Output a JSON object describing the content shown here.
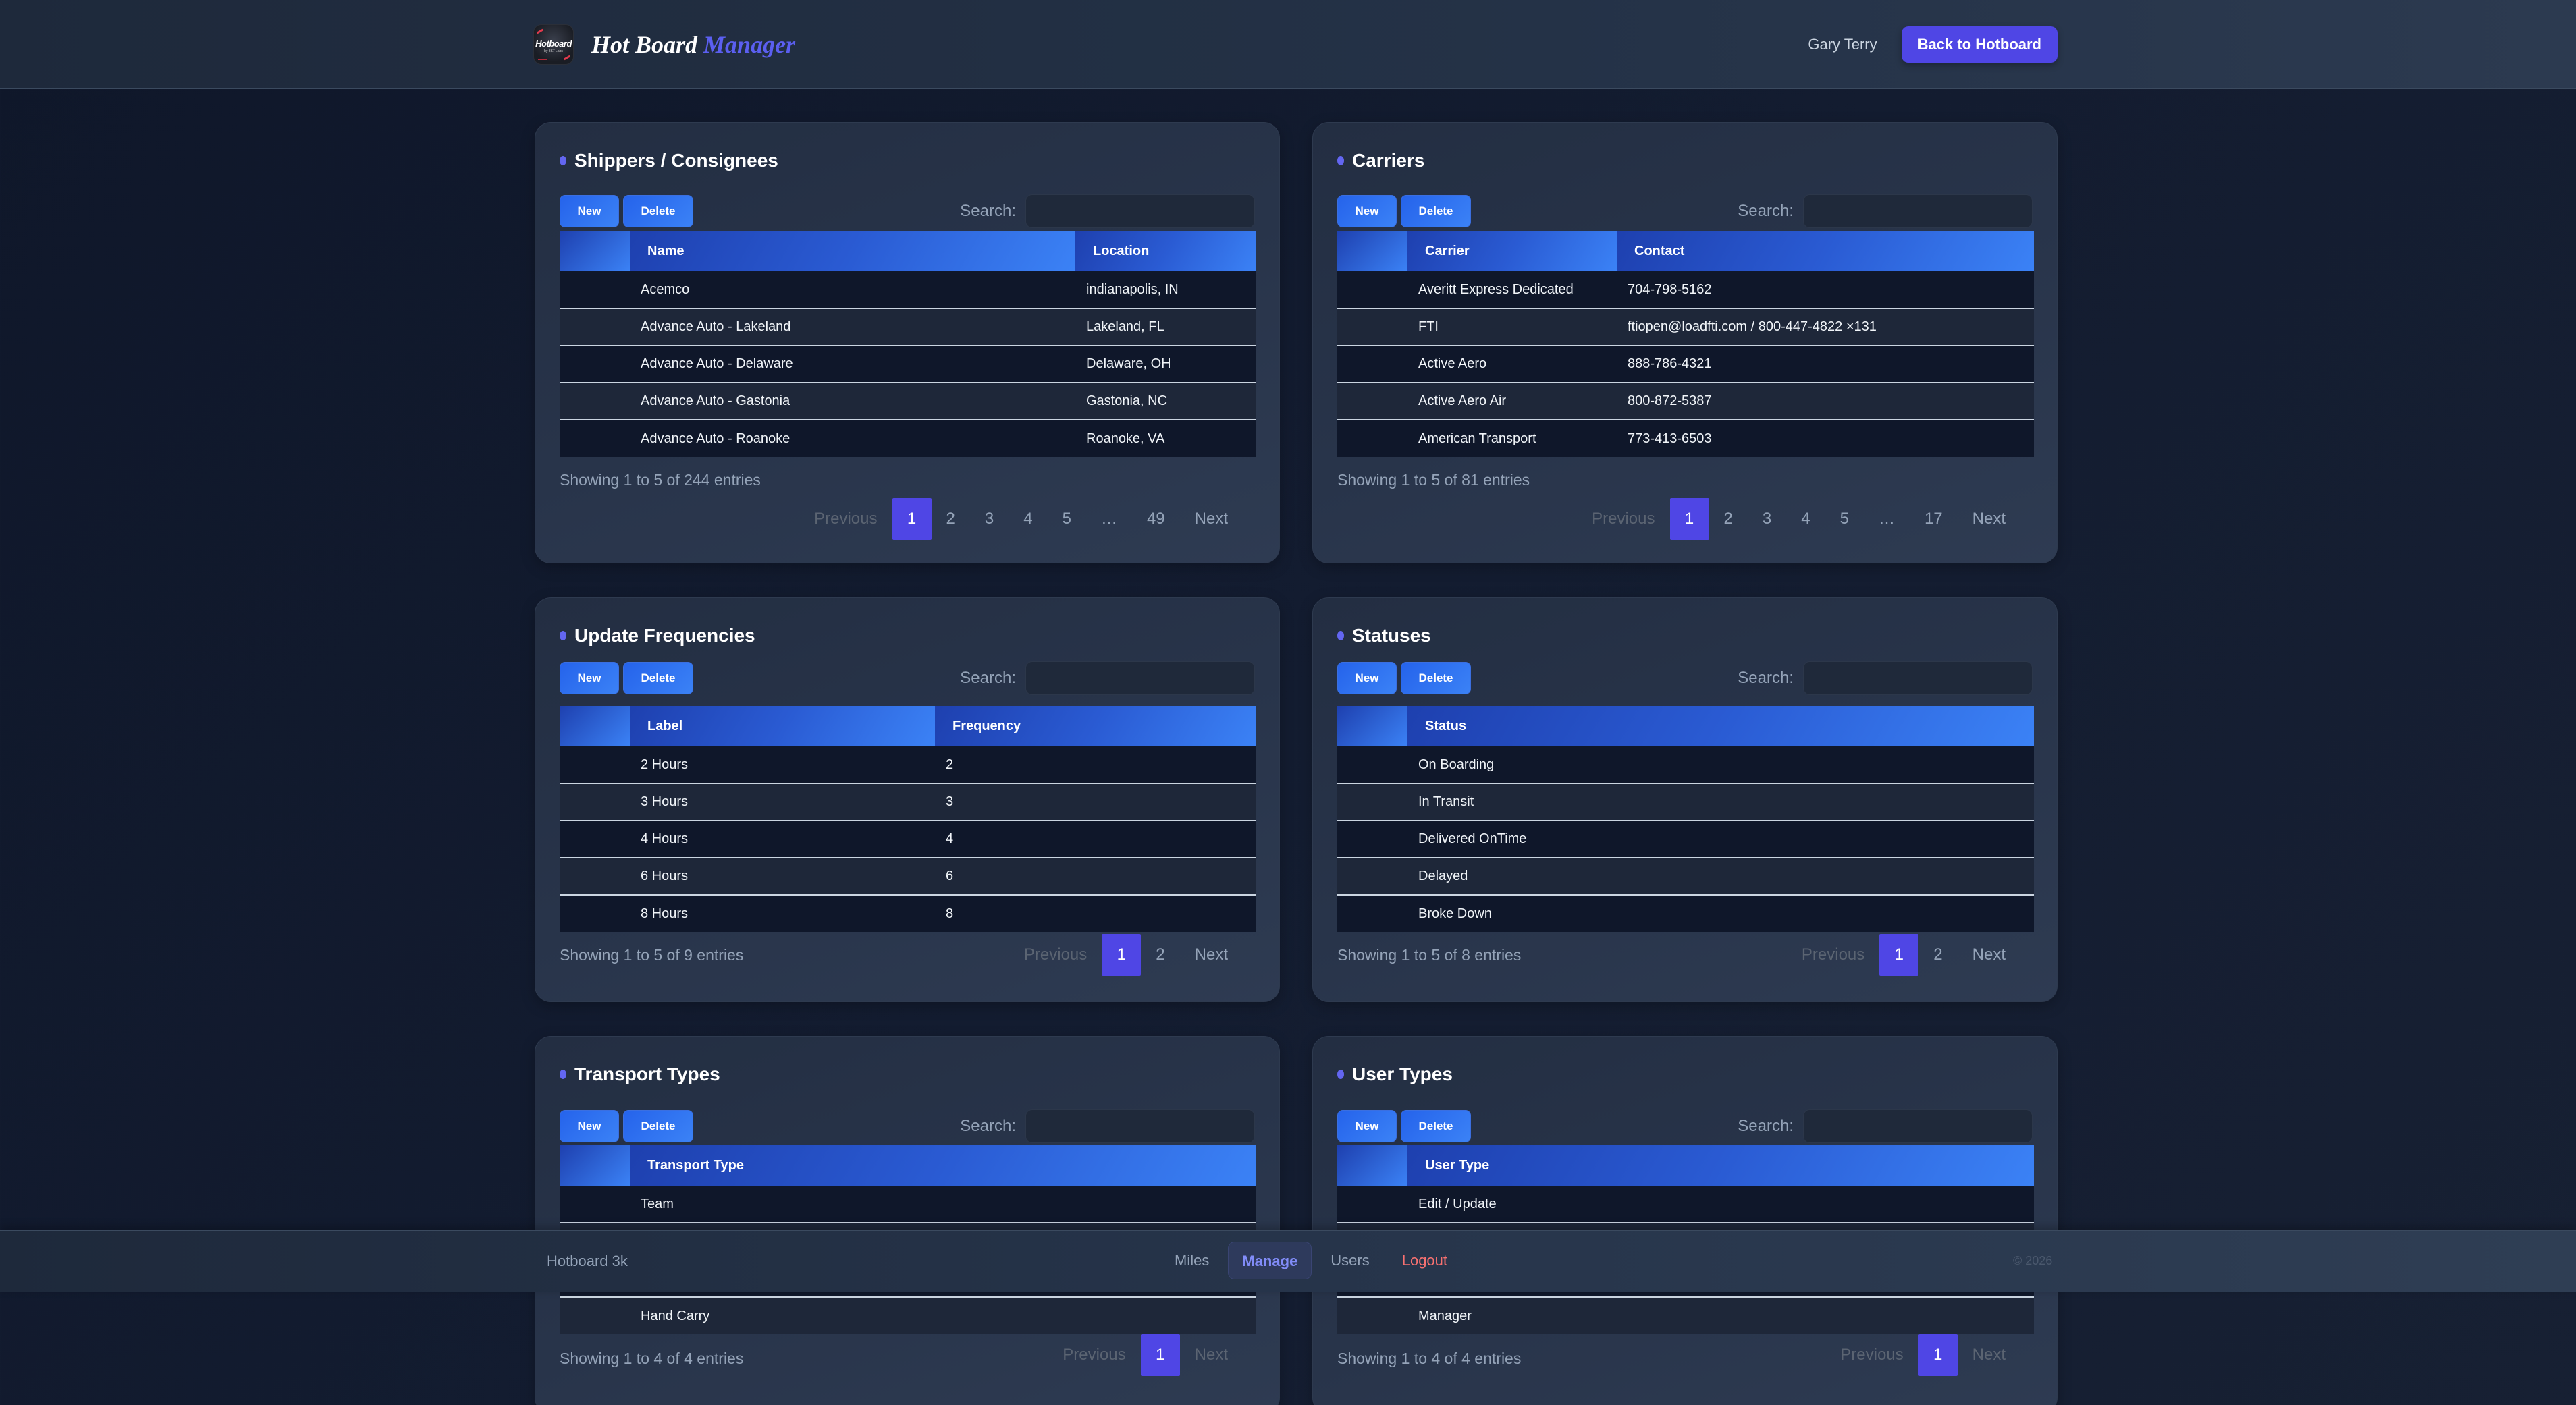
{
  "header": {
    "logo_text": "Hotboard",
    "logo_subtext": "by 3S7 Labs",
    "title_main": "Hot Board",
    "title_accent": "Manager",
    "user_name": "Gary Terry",
    "back_button": "Back to Hotboard"
  },
  "common": {
    "new_label": "New",
    "delete_label": "Delete",
    "search_label": "Search:",
    "search_value": "",
    "previous_label": "Previous",
    "next_label": "Next",
    "ellipsis": "…"
  },
  "panels": {
    "shippers": {
      "title": "Shippers / Consignees",
      "columns": [
        "Name",
        "Location"
      ],
      "rows": [
        [
          "Acemco",
          "indianapolis, IN"
        ],
        [
          "Advance Auto - Lakeland",
          "Lakeland, FL"
        ],
        [
          "Advance Auto - Delaware",
          "Delaware, OH"
        ],
        [
          "Advance Auto - Gastonia",
          "Gastonia, NC"
        ],
        [
          "Advance Auto - Roanoke",
          "Roanoke, VA"
        ]
      ],
      "info": "Showing 1 to 5 of 244 entries",
      "pages": [
        "1",
        "2",
        "3",
        "4",
        "5",
        "…",
        "49"
      ],
      "current_page": "1"
    },
    "carriers": {
      "title": "Carriers",
      "columns": [
        "Carrier",
        "Contact"
      ],
      "rows": [
        [
          "Averitt Express Dedicated",
          "704-798-5162"
        ],
        [
          "FTI",
          "ftiopen@loadfti.com / 800-447-4822 ×131"
        ],
        [
          "Active Aero",
          "888-786-4321"
        ],
        [
          "Active Aero Air",
          "800-872-5387"
        ],
        [
          "American Transport",
          "773-413-6503"
        ]
      ],
      "info": "Showing 1 to 5 of 81 entries",
      "pages": [
        "1",
        "2",
        "3",
        "4",
        "5",
        "…",
        "17"
      ],
      "current_page": "1"
    },
    "frequencies": {
      "title": "Update Frequencies",
      "columns": [
        "Label",
        "Frequency"
      ],
      "rows": [
        [
          "2 Hours",
          "2"
        ],
        [
          "3 Hours",
          "3"
        ],
        [
          "4 Hours",
          "4"
        ],
        [
          "6 Hours",
          "6"
        ],
        [
          "8 Hours",
          "8"
        ]
      ],
      "info": "Showing 1 to 5 of 9 entries",
      "pages": [
        "1",
        "2"
      ],
      "current_page": "1"
    },
    "statuses": {
      "title": "Statuses",
      "columns": [
        "Status"
      ],
      "rows": [
        [
          "On Boarding"
        ],
        [
          "In Transit"
        ],
        [
          "Delivered OnTime"
        ],
        [
          "Delayed"
        ],
        [
          "Broke Down"
        ]
      ],
      "info": "Showing 1 to 5 of 8 entries",
      "pages": [
        "1",
        "2"
      ],
      "current_page": "1"
    },
    "transport_types": {
      "title": "Transport Types",
      "columns": [
        "Transport Type"
      ],
      "rows": [
        [
          "Team"
        ],
        [
          ""
        ],
        [
          ""
        ],
        [
          "Hand Carry"
        ]
      ],
      "info": "Showing 1 to 4 of 4 entries",
      "pages": [
        "1"
      ],
      "current_page": "1"
    },
    "user_types": {
      "title": "User Types",
      "columns": [
        "User Type"
      ],
      "rows": [
        [
          "Edit / Update"
        ],
        [
          ""
        ],
        [
          ""
        ],
        [
          "Manager"
        ]
      ],
      "info": "Showing 1 to 4 of 4 entries",
      "pages": [
        "1"
      ],
      "current_page": "1"
    }
  },
  "footer": {
    "brand": "Hotboard 3k",
    "nav": [
      {
        "label": "Miles",
        "active": false
      },
      {
        "label": "Manage",
        "active": true
      },
      {
        "label": "Users",
        "active": false
      },
      {
        "label": "Logout",
        "active": false
      }
    ],
    "copyright": "© 2026"
  },
  "colors": {
    "accent": "#4f46e5",
    "accent_text": "#5b5ff0",
    "button_blue": "#2563eb",
    "logout_red": "#f87171",
    "bg": "#0f172a"
  }
}
